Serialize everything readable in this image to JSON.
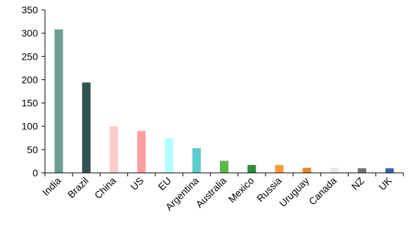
{
  "chart_data": {
    "type": "bar",
    "title": "",
    "xlabel": "",
    "ylabel": "",
    "ylim": [
      0,
      350
    ],
    "yticks": [
      "0",
      "50",
      "100",
      "150",
      "200",
      "250",
      "300",
      "350"
    ],
    "grid": false,
    "legend": "none",
    "categories": [
      "India",
      "Brazil",
      "China",
      "US",
      "EU",
      "Argentina",
      "Australia",
      "Mexico",
      "Russia",
      "Uruguay",
      "Canada",
      "NZ",
      "UK"
    ],
    "values": [
      308,
      194,
      100,
      90,
      75,
      53,
      26,
      17,
      17,
      11,
      11,
      10,
      10
    ],
    "colors": [
      "#6e9e94",
      "#2f5450",
      "#ffcccc",
      "#ff9e9e",
      "#b3ffff",
      "#5ccccc",
      "#5cb84d",
      "#2e8b3c",
      "#ff9a3c",
      "#e8862a",
      "#e8e8e8",
      "#707070",
      "#3c64b4"
    ]
  }
}
